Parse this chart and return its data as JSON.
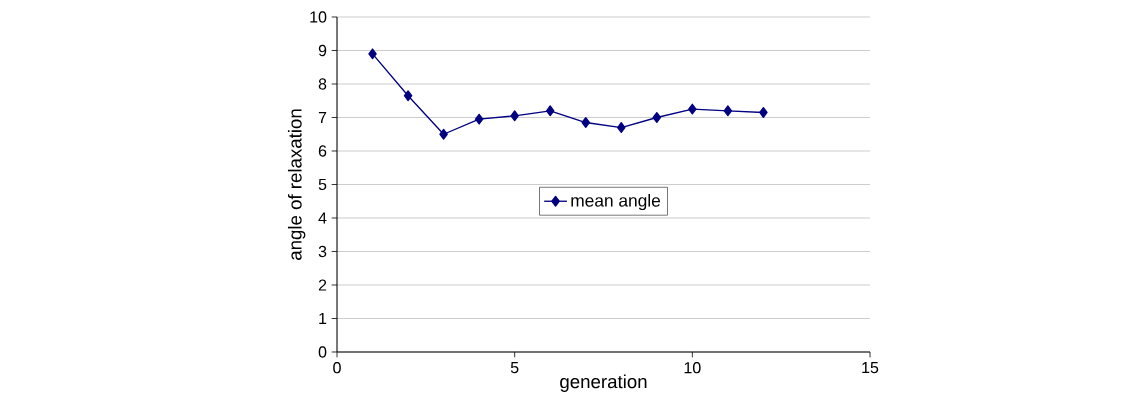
{
  "chart_data": {
    "type": "line",
    "xlabel": "generation",
    "ylabel": "angle of relaxation",
    "x": [
      1,
      2,
      3,
      4,
      5,
      6,
      7,
      8,
      9,
      10,
      11,
      12
    ],
    "series": [
      {
        "name": "mean angle",
        "color": "#000080",
        "values": [
          8.9,
          7.65,
          6.5,
          6.95,
          7.05,
          7.2,
          6.85,
          6.7,
          7.0,
          7.25,
          7.2,
          7.15
        ]
      }
    ],
    "xlim": [
      0,
      15
    ],
    "xticks": [
      0,
      5,
      10,
      15
    ],
    "ylim": [
      0,
      10
    ],
    "yticks": [
      0,
      1,
      2,
      3,
      4,
      5,
      6,
      7,
      8,
      9,
      10
    ],
    "grid": "y",
    "legend": "center",
    "marker": "diamond",
    "line_style": "solid"
  }
}
